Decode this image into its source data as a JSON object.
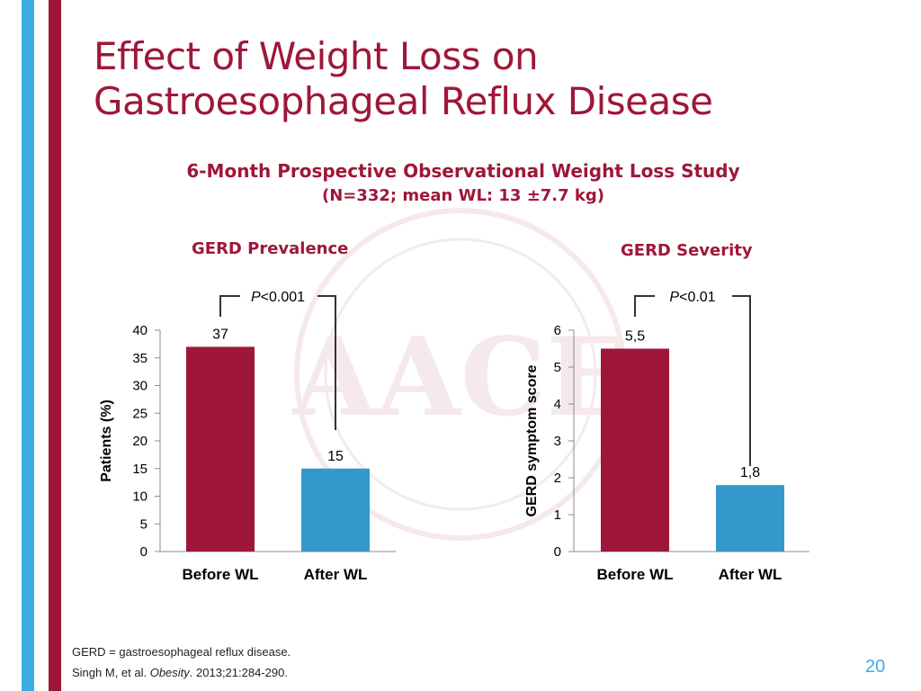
{
  "slide": {
    "title_line1": "Effect of Weight Loss on",
    "title_line2": "Gastroesophageal Reflux Disease",
    "subtitle_line1": "6-Month Prospective Observational Weight Loss Study",
    "subtitle_line2": "(N=332; mean WL: 13 ±7.7 kg)",
    "footnote": "GERD = gastroesophageal reflux disease.",
    "citation_authors": "Singh M, et al. ",
    "citation_journal": "Obesity",
    "citation_rest": ". 2013;21:284-290.",
    "page_number": "20",
    "watermark_text": "AACE",
    "colors": {
      "brand_red": "#9E1739",
      "brand_blue": "#3AADE0"
    }
  },
  "chart_data": [
    {
      "type": "bar",
      "title": "GERD Prevalence",
      "categories": [
        "Before WL",
        "After WL"
      ],
      "values": [
        37,
        15
      ],
      "value_labels": [
        "37",
        "15"
      ],
      "bar_colors": [
        "#9E1739",
        "#3399CC"
      ],
      "ylabel": "Patients (%)",
      "xlabel": "",
      "ylim": [
        0,
        40
      ],
      "yticks": [
        0,
        5,
        10,
        15,
        20,
        25,
        30,
        35,
        40
      ],
      "ytick_labels": [
        "0",
        "5",
        "10",
        "15",
        "20",
        "25",
        "30",
        "35",
        "40"
      ],
      "grid": false,
      "annotation": {
        "p_symbol": "P",
        "p_rest": "<0.001"
      }
    },
    {
      "type": "bar",
      "title": "GERD Severity",
      "categories": [
        "Before WL",
        "After WL"
      ],
      "values": [
        5.5,
        1.8
      ],
      "value_labels": [
        "5,5",
        "1,8"
      ],
      "bar_colors": [
        "#9E1739",
        "#3399CC"
      ],
      "ylabel": "GERD symptom score",
      "xlabel": "",
      "ylim": [
        0,
        6
      ],
      "yticks": [
        0,
        1,
        2,
        3,
        4,
        5,
        6
      ],
      "ytick_labels": [
        "0",
        "1",
        "2",
        "3",
        "4",
        "5",
        "6"
      ],
      "grid": false,
      "annotation": {
        "p_symbol": "P",
        "p_rest": "<0.01"
      }
    }
  ]
}
